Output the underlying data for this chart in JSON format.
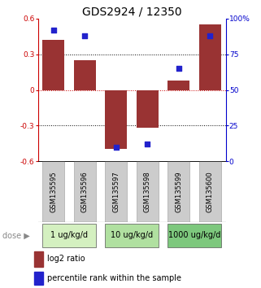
{
  "title": "GDS2924 / 12350",
  "samples": [
    "GSM135595",
    "GSM135596",
    "GSM135597",
    "GSM135598",
    "GSM135599",
    "GSM135600"
  ],
  "log2_ratio": [
    0.42,
    0.25,
    -0.5,
    -0.32,
    0.08,
    0.55
  ],
  "percentile_rank": [
    92,
    88,
    10,
    12,
    65,
    88
  ],
  "bar_color": "#993333",
  "dot_color": "#2222cc",
  "ylim_left": [
    -0.6,
    0.6
  ],
  "ylim_right": [
    0,
    100
  ],
  "yticks_left": [
    -0.6,
    -0.3,
    0.0,
    0.3,
    0.6
  ],
  "yticks_right": [
    0,
    25,
    50,
    75,
    100
  ],
  "ytick_labels_left": [
    "-0.6",
    "-0.3",
    "0",
    "0.3",
    "0.6"
  ],
  "ytick_labels_right": [
    "0",
    "25",
    "50",
    "75",
    "100%"
  ],
  "hlines_dotted": [
    0.3,
    -0.3
  ],
  "hline_red": 0.0,
  "dose_groups": [
    {
      "label": "1 ug/kg/d",
      "samples": [
        0,
        1
      ],
      "color": "#d4f0c0"
    },
    {
      "label": "10 ug/kg/d",
      "samples": [
        2,
        3
      ],
      "color": "#b0e0a0"
    },
    {
      "label": "1000 ug/kg/d",
      "samples": [
        4,
        5
      ],
      "color": "#7dc87d"
    }
  ],
  "legend_bar_label": "log2 ratio",
  "legend_dot_label": "percentile rank within the sample",
  "bar_width": 0.7,
  "left_tick_color": "#cc0000",
  "right_tick_color": "#0000cc",
  "title_fontsize": 10,
  "axis_fontsize": 6.5,
  "sample_label_fontsize": 6,
  "dose_fontsize": 7,
  "legend_fontsize": 7
}
